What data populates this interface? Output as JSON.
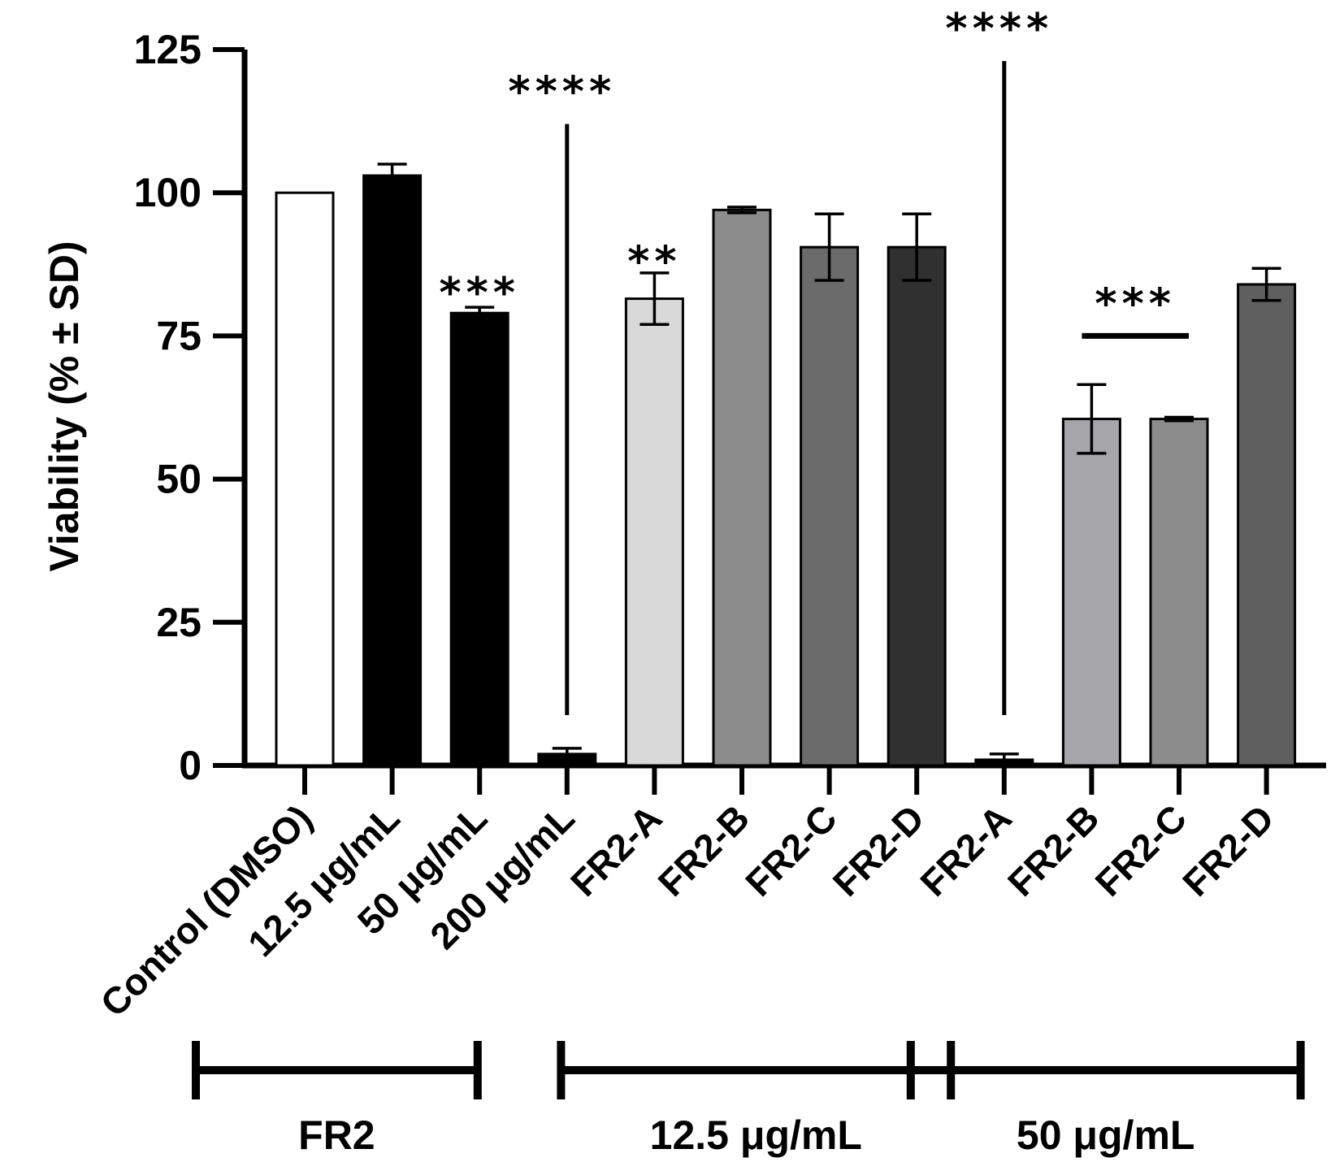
{
  "chart_data": {
    "type": "bar",
    "title": "",
    "xlabel": "",
    "ylabel": "Viability (% ± SD)",
    "ylim": [
      0,
      125
    ],
    "yticks": [
      "0",
      "25",
      "50",
      "75",
      "100",
      "125"
    ],
    "categories": [
      "Control (DMSO)",
      "12.5 μg/mL",
      "50 μg/mL",
      "200 μg/mL",
      "FR2-A",
      "FR2-B",
      "FR2-C",
      "FR2-D",
      "FR2-A",
      "FR2-B",
      "FR2-C",
      "FR2-D"
    ],
    "values": [
      100,
      103,
      79,
      2,
      81.5,
      97,
      90.5,
      90.5,
      1,
      60.5,
      60.5,
      84
    ],
    "errors": [
      0,
      2,
      1,
      1,
      4.5,
      0.5,
      5.8,
      5.8,
      1,
      6,
      0.3,
      2.8
    ],
    "colors": [
      "#ffffff",
      "#000000",
      "#000000",
      "#000000",
      "#d9d9d9",
      "#8c8c8c",
      "#6b6b6b",
      "#303030",
      "#000000",
      "#a6a6aa",
      "#8c8c8c",
      "#5f5f5f"
    ],
    "significance": [
      {
        "label": "***",
        "bar": 2,
        "y": 82,
        "type": "text"
      },
      {
        "label": "****",
        "bar": 3,
        "y": 112,
        "type": "vline"
      },
      {
        "label": "**",
        "bar": 4,
        "y": 87.5,
        "type": "text"
      },
      {
        "label": "****",
        "bar": 8,
        "y": 123,
        "type": "vline"
      },
      {
        "label": "***",
        "from_bar": 9,
        "to_bar": 10,
        "y": 75,
        "type": "hline"
      }
    ],
    "groups": [
      {
        "label": "FR2",
        "from_bar": 0,
        "to_bar": 3
      },
      {
        "label": "12.5 μg/mL",
        "from_bar": 4,
        "to_bar": 7
      },
      {
        "label": "50 μg/mL",
        "from_bar": 8,
        "to_bar": 11
      }
    ]
  }
}
